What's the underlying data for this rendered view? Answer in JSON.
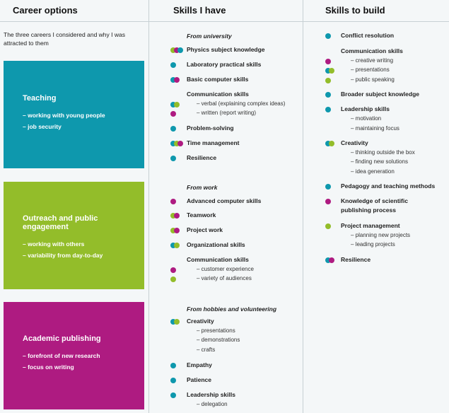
{
  "headers": {
    "career": "Career options",
    "have": "Skills I have",
    "build": "Skills to build"
  },
  "intro": "The three careers I considered and why I was attracted to them",
  "colors": {
    "teal": "#0e98ad",
    "green": "#93bd2a",
    "magenta": "#ae1b81"
  },
  "careers": [
    {
      "title": "Teaching",
      "points": [
        "– working with young people",
        "– job security"
      ]
    },
    {
      "title": "Outreach and public engagement",
      "points": [
        "– working with others",
        "– variability from day-to-day"
      ]
    },
    {
      "title": "Academic publishing",
      "points": [
        "– forefront of new research",
        "– focus on writing"
      ]
    }
  ],
  "skills_have": {
    "from_university": {
      "heading": "From university",
      "items": [
        {
          "label": "Physics subject knowledge",
          "dots": [
            "green",
            "magenta",
            "teal"
          ]
        },
        {
          "label": "Laboratory practical skills",
          "dots": [
            "teal"
          ]
        },
        {
          "label": "Basic computer skills",
          "dots": [
            "teal",
            "magenta"
          ]
        },
        {
          "label": "Communication skills",
          "dots": []
        },
        {
          "label": "– verbal (explaining complex ideas)",
          "dots": [
            "teal",
            "green"
          ]
        },
        {
          "label": "– written (report writing)",
          "dots": [
            "magenta"
          ]
        },
        {
          "label": "Problem-solving",
          "dots": [
            "teal"
          ]
        },
        {
          "label": "Time management",
          "dots": [
            "teal",
            "green",
            "magenta"
          ]
        },
        {
          "label": "Resilience",
          "dots": [
            "teal"
          ]
        }
      ]
    },
    "from_work": {
      "heading": "From work",
      "items": [
        {
          "label": "Advanced computer skills",
          "dots": [
            "magenta"
          ]
        },
        {
          "label": "Teamwork",
          "dots": [
            "green",
            "magenta"
          ]
        },
        {
          "label": "Project work",
          "dots": [
            "green",
            "magenta"
          ]
        },
        {
          "label": "Organizational skills",
          "dots": [
            "teal",
            "green"
          ]
        },
        {
          "label": "Communication skills",
          "dots": []
        },
        {
          "label": "– customer experience",
          "dots": [
            "magenta"
          ]
        },
        {
          "label": "– variety of audiences",
          "dots": [
            "green"
          ]
        }
      ]
    },
    "from_hobbies": {
      "heading": "From hobbies and volunteering",
      "items": [
        {
          "label": "Creativity",
          "dots": [
            "teal",
            "green"
          ]
        },
        {
          "label": "– presentations",
          "dots": []
        },
        {
          "label": "– demonstrations",
          "dots": []
        },
        {
          "label": "– crafts",
          "dots": []
        },
        {
          "label": "Empathy",
          "dots": [
            "teal"
          ]
        },
        {
          "label": "Patience",
          "dots": [
            "teal"
          ]
        },
        {
          "label": "Leadership skills",
          "dots": [
            "teal"
          ]
        },
        {
          "label": "– delegation",
          "dots": []
        }
      ]
    }
  },
  "skills_build": [
    {
      "label": "Conflict resolution",
      "dots": [
        "teal"
      ]
    },
    {
      "label": "Communication skills",
      "dots": []
    },
    {
      "label": "– creative writing",
      "dots": [
        "magenta"
      ]
    },
    {
      "label": "– presentations",
      "dots": [
        "teal",
        "green"
      ]
    },
    {
      "label": "– public speaking",
      "dots": [
        "green"
      ]
    },
    {
      "label": "Broader subject knowledge",
      "dots": [
        "teal"
      ]
    },
    {
      "label": "Leadership skills",
      "dots": [
        "teal"
      ]
    },
    {
      "label": "– motivation",
      "dots": []
    },
    {
      "label": "– maintaining focus",
      "dots": []
    },
    {
      "label": "Creativity",
      "dots": [
        "teal",
        "green"
      ]
    },
    {
      "label": "– thinking outside the box",
      "dots": []
    },
    {
      "label": "– finding new solutions",
      "dots": []
    },
    {
      "label": "– idea generation",
      "dots": []
    },
    {
      "label": "Pedagogy and teaching methods",
      "dots": [
        "teal"
      ]
    },
    {
      "label": "Knowledge of scientific",
      "dots": [
        "magenta"
      ]
    },
    {
      "label": "publishing process",
      "dots": []
    },
    {
      "label": "Project management",
      "dots": [
        "green"
      ]
    },
    {
      "label": "– planning new projects",
      "dots": []
    },
    {
      "label": "– leading projects",
      "dots": []
    },
    {
      "label": "Resilience",
      "dots": [
        "teal",
        "magenta"
      ]
    }
  ]
}
